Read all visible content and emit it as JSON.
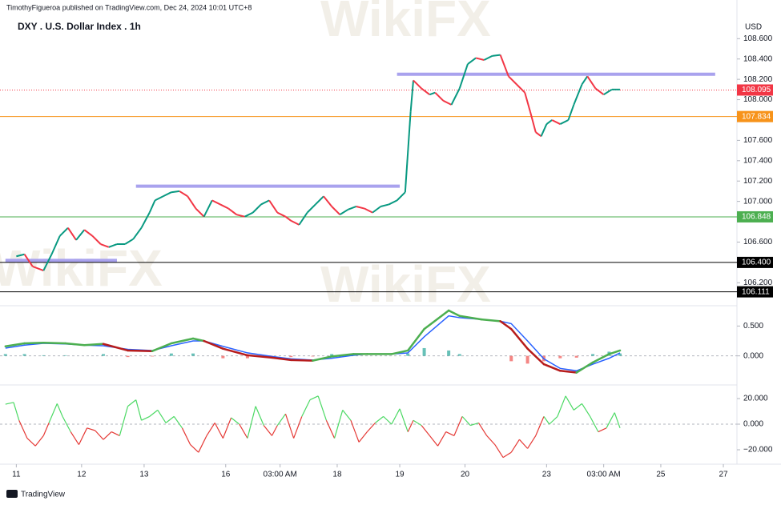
{
  "header": {
    "byline": "TimothyFigueroa published on TradingView.com, Dec 24, 2024 10:01 UTC+8",
    "logo": "TradingView",
    "watermark": "WikiFX"
  },
  "chart_data": [
    {
      "type": "line",
      "title": "DXY . U.S. Dollar Index . 1h",
      "unit": "USD",
      "x": [
        0,
        3,
        6,
        10,
        13,
        16,
        19,
        22,
        25,
        28,
        31,
        34,
        37,
        40,
        43,
        46,
        49,
        51,
        54,
        57,
        60,
        63,
        66,
        69,
        72,
        75,
        78,
        81,
        84,
        87,
        90,
        93,
        96,
        99,
        101,
        104,
        107,
        110,
        113,
        116,
        119,
        122,
        125,
        128,
        131,
        134,
        137,
        140,
        143,
        145,
        146,
        149,
        152,
        154,
        157,
        160,
        163,
        166,
        169,
        172,
        175,
        178,
        181,
        184,
        187,
        189,
        191,
        193,
        195,
        197,
        200,
        203,
        205,
        208,
        210,
        213,
        216,
        219,
        222
      ],
      "values": [
        106.46,
        106.48,
        106.36,
        106.32,
        106.48,
        106.66,
        106.74,
        106.62,
        106.72,
        106.66,
        106.58,
        106.55,
        106.58,
        106.58,
        106.63,
        106.74,
        106.89,
        107.01,
        107.05,
        107.09,
        107.1,
        107.05,
        106.93,
        106.85,
        107.01,
        106.97,
        106.93,
        106.87,
        106.85,
        106.89,
        106.97,
        107.01,
        106.89,
        106.85,
        106.81,
        106.77,
        106.89,
        106.97,
        107.05,
        106.95,
        106.87,
        106.92,
        106.95,
        106.93,
        106.89,
        106.95,
        106.97,
        107.01,
        107.09,
        107.88,
        108.19,
        108.11,
        108.05,
        108.07,
        107.99,
        107.95,
        108.11,
        108.35,
        108.41,
        108.39,
        108.43,
        108.44,
        108.23,
        108.15,
        108.07,
        107.88,
        107.68,
        107.64,
        107.76,
        107.8,
        107.76,
        107.8,
        107.95,
        108.15,
        108.23,
        108.11,
        108.05,
        108.1,
        108.1
      ],
      "up_color": "#089981",
      "down_color": "#f23645",
      "xlim": [
        -6,
        265
      ],
      "ylim": [
        105.99,
        108.98
      ],
      "yticks": [
        {
          "value": 108.6,
          "label": "108.600"
        },
        {
          "value": 108.4,
          "label": "108.400"
        },
        {
          "value": 108.2,
          "label": "108.200"
        },
        {
          "value": 108,
          "label": "108.000"
        },
        {
          "value": 107.6,
          "label": "107.600"
        },
        {
          "value": 107.4,
          "label": "107.400"
        },
        {
          "value": 107.2,
          "label": "107.200"
        },
        {
          "value": 107,
          "label": "107.000"
        },
        {
          "value": 106.6,
          "label": "106.600"
        },
        {
          "value": 106.2,
          "label": "106.200"
        }
      ],
      "levels": [
        {
          "price": 108.095,
          "color": "#f23645",
          "dotted": true
        },
        {
          "price": 107.834,
          "color": "#f7931a"
        },
        {
          "price": 106.848,
          "color": "#4caf50"
        },
        {
          "price": {
            "value": 106.4,
            "label": "106.400"
          },
          "color": "#000000"
        },
        {
          "price": 106.111,
          "color": "#000000"
        }
      ],
      "zones": [
        {
          "value": 108.25,
          "x": [
            140,
            257
          ]
        },
        {
          "value": 107.15,
          "x": [
            44,
            141
          ]
        },
        {
          "value": 106.42,
          "x": [
            -4,
            37
          ]
        }
      ],
      "zone_color": "#a9a2ee"
    },
    {
      "type": "macd",
      "x": [
        -4,
        3,
        10,
        18,
        25,
        32,
        41,
        50,
        57,
        65,
        69,
        76,
        85,
        94,
        101,
        109,
        116,
        124,
        129,
        138,
        144,
        150,
        159,
        163,
        171,
        178,
        182,
        188,
        194,
        200,
        206,
        212,
        218,
        222
      ],
      "macd": [
        0.16,
        0.21,
        0.22,
        0.21,
        0.18,
        0.2,
        0.09,
        0.08,
        0.21,
        0.29,
        0.25,
        0.12,
        0.01,
        -0.03,
        -0.07,
        -0.08,
        -0.01,
        0.03,
        0.03,
        0.03,
        0.09,
        0.45,
        0.76,
        0.67,
        0.61,
        0.58,
        0.45,
        0.12,
        -0.14,
        -0.25,
        -0.28,
        -0.11,
        0.03,
        0.09
      ],
      "signal": [
        0.13,
        0.18,
        0.21,
        0.2,
        0.18,
        0.17,
        0.11,
        0.09,
        0.17,
        0.25,
        0.25,
        0.16,
        0.05,
        -0.01,
        -0.05,
        -0.07,
        -0.04,
        0.01,
        0.03,
        0.03,
        0.05,
        0.32,
        0.67,
        0.64,
        0.61,
        0.58,
        0.54,
        0.25,
        -0.05,
        -0.21,
        -0.25,
        -0.14,
        -0.04,
        0.05
      ],
      "histogram": [
        0.03,
        0.03,
        0.01,
        0.01,
        0,
        0.03,
        -0.02,
        -0.01,
        0.04,
        0.04,
        0,
        -0.04,
        -0.04,
        -0.02,
        -0.02,
        -0.01,
        0.03,
        0.02,
        0,
        0,
        0.04,
        0.13,
        0.09,
        0.03,
        0,
        0,
        -0.09,
        -0.13,
        -0.09,
        -0.04,
        -0.03,
        0.03,
        0.07,
        0.04
      ],
      "macd_up_color": "#4caf50",
      "macd_down_color": "#b71c1c",
      "signal_color": "#2962ff",
      "hist_up_color": "#26a69a",
      "hist_down_color": "#ef5350",
      "xlim": [
        -6,
        265
      ],
      "ylim": [
        -0.474,
        0.8
      ],
      "yticks": [
        {
          "value": 0.5,
          "label": "0.500"
        },
        {
          "value": 0,
          "label": "0.000"
        }
      ]
    },
    {
      "type": "oscillator",
      "x": [
        -4,
        -1,
        1,
        4,
        7,
        10,
        12,
        15,
        17,
        20,
        23,
        26,
        29,
        32,
        35,
        38,
        41,
        44,
        46,
        49,
        52,
        55,
        58,
        61,
        64,
        67,
        70,
        73,
        76,
        79,
        82,
        85,
        88,
        91,
        94,
        96,
        99,
        102,
        105,
        108,
        111,
        114,
        117,
        120,
        123,
        126,
        129,
        132,
        135,
        138,
        141,
        144,
        146,
        149,
        152,
        155,
        158,
        161,
        164,
        167,
        170,
        173,
        176,
        179,
        182,
        185,
        188,
        191,
        194,
        196,
        199,
        202,
        205,
        208,
        211,
        214,
        217,
        220,
        222
      ],
      "values": [
        15.6,
        17,
        3,
        -11,
        -17,
        -9,
        1,
        16,
        6,
        -6,
        -16,
        -3,
        -5,
        -12,
        -6,
        -9,
        14,
        19,
        3,
        6,
        11,
        1,
        6,
        -3,
        -16,
        -22,
        -9,
        1,
        -11,
        5,
        0,
        -11,
        14,
        -1,
        -9,
        -1,
        8,
        -11,
        6,
        19,
        22,
        3,
        -11,
        11,
        3,
        -14,
        -6,
        1,
        6,
        0,
        12,
        -6,
        3,
        -1,
        -9,
        -17,
        -6,
        -9,
        6,
        -1,
        1,
        -9,
        -16,
        -26,
        -22,
        -12,
        -19,
        -9,
        6,
        0,
        6,
        22,
        11,
        16,
        6,
        -6,
        -3,
        9,
        -3
      ],
      "up_color": "#4cd964",
      "down_color": "#e53935",
      "xlim": [
        -6,
        265
      ],
      "ylim": [
        -31.25,
        31.25
      ],
      "yticks": [
        {
          "value": 20,
          "label": "20.000"
        },
        {
          "value": 0,
          "label": "0.000"
        },
        {
          "value": -20,
          "label": "−20.000"
        }
      ],
      "xticks": [
        {
          "value": 0,
          "label": "11"
        },
        {
          "value": 24,
          "label": "12"
        },
        {
          "value": 47,
          "label": "13"
        },
        {
          "value": 77,
          "label": "16"
        },
        {
          "value": 97,
          "label": "03:00 AM"
        },
        {
          "value": 118,
          "label": "18"
        },
        {
          "value": 141,
          "label": "19"
        },
        {
          "value": 165,
          "label": "20"
        },
        {
          "value": 195,
          "label": "23"
        },
        {
          "value": 216,
          "label": "03:00 AM"
        },
        {
          "value": 237,
          "label": "25"
        },
        {
          "value": 260,
          "label": "27"
        }
      ]
    }
  ]
}
